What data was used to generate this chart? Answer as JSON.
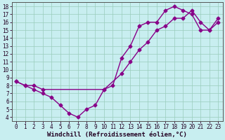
{
  "line1_x": [
    0,
    1,
    2,
    3,
    4,
    5,
    6,
    7,
    8,
    9,
    10,
    11,
    12,
    13,
    14,
    15,
    16,
    17,
    18,
    19,
    20,
    21,
    22,
    23
  ],
  "line1_y": [
    8.5,
    8.0,
    7.5,
    7.0,
    6.5,
    5.5,
    4.5,
    4.0,
    5.0,
    5.5,
    7.5,
    8.0,
    11.5,
    13.0,
    15.5,
    16.0,
    16.0,
    17.5,
    18.0,
    17.5,
    17.0,
    15.0,
    15.0,
    16.5
  ],
  "line2_x": [
    0,
    1,
    2,
    3,
    10,
    12,
    13,
    14,
    15,
    16,
    17,
    18,
    19,
    20,
    21,
    22,
    23
  ],
  "line2_y": [
    8.5,
    8.0,
    8.0,
    7.5,
    7.5,
    9.5,
    11.0,
    12.5,
    13.5,
    15.0,
    15.5,
    16.5,
    16.5,
    17.5,
    16.0,
    15.0,
    16.0
  ],
  "color": "#880088",
  "bg_color": "#c8eef0",
  "grid_color": "#99ccbb",
  "xlabel": "Windchill (Refroidissement éolien,°C)",
  "xlim_min": -0.5,
  "xlim_max": 23.5,
  "ylim_min": 3.5,
  "ylim_max": 18.5,
  "xticks": [
    0,
    1,
    2,
    3,
    4,
    5,
    6,
    7,
    8,
    9,
    10,
    11,
    12,
    13,
    14,
    15,
    16,
    17,
    18,
    19,
    20,
    21,
    22,
    23
  ],
  "yticks": [
    4,
    5,
    6,
    7,
    8,
    9,
    10,
    11,
    12,
    13,
    14,
    15,
    16,
    17,
    18
  ],
  "marker": "D",
  "markersize": 2.5,
  "linewidth": 1.0,
  "xlabel_fontsize": 6.5,
  "tick_fontsize": 5.5
}
